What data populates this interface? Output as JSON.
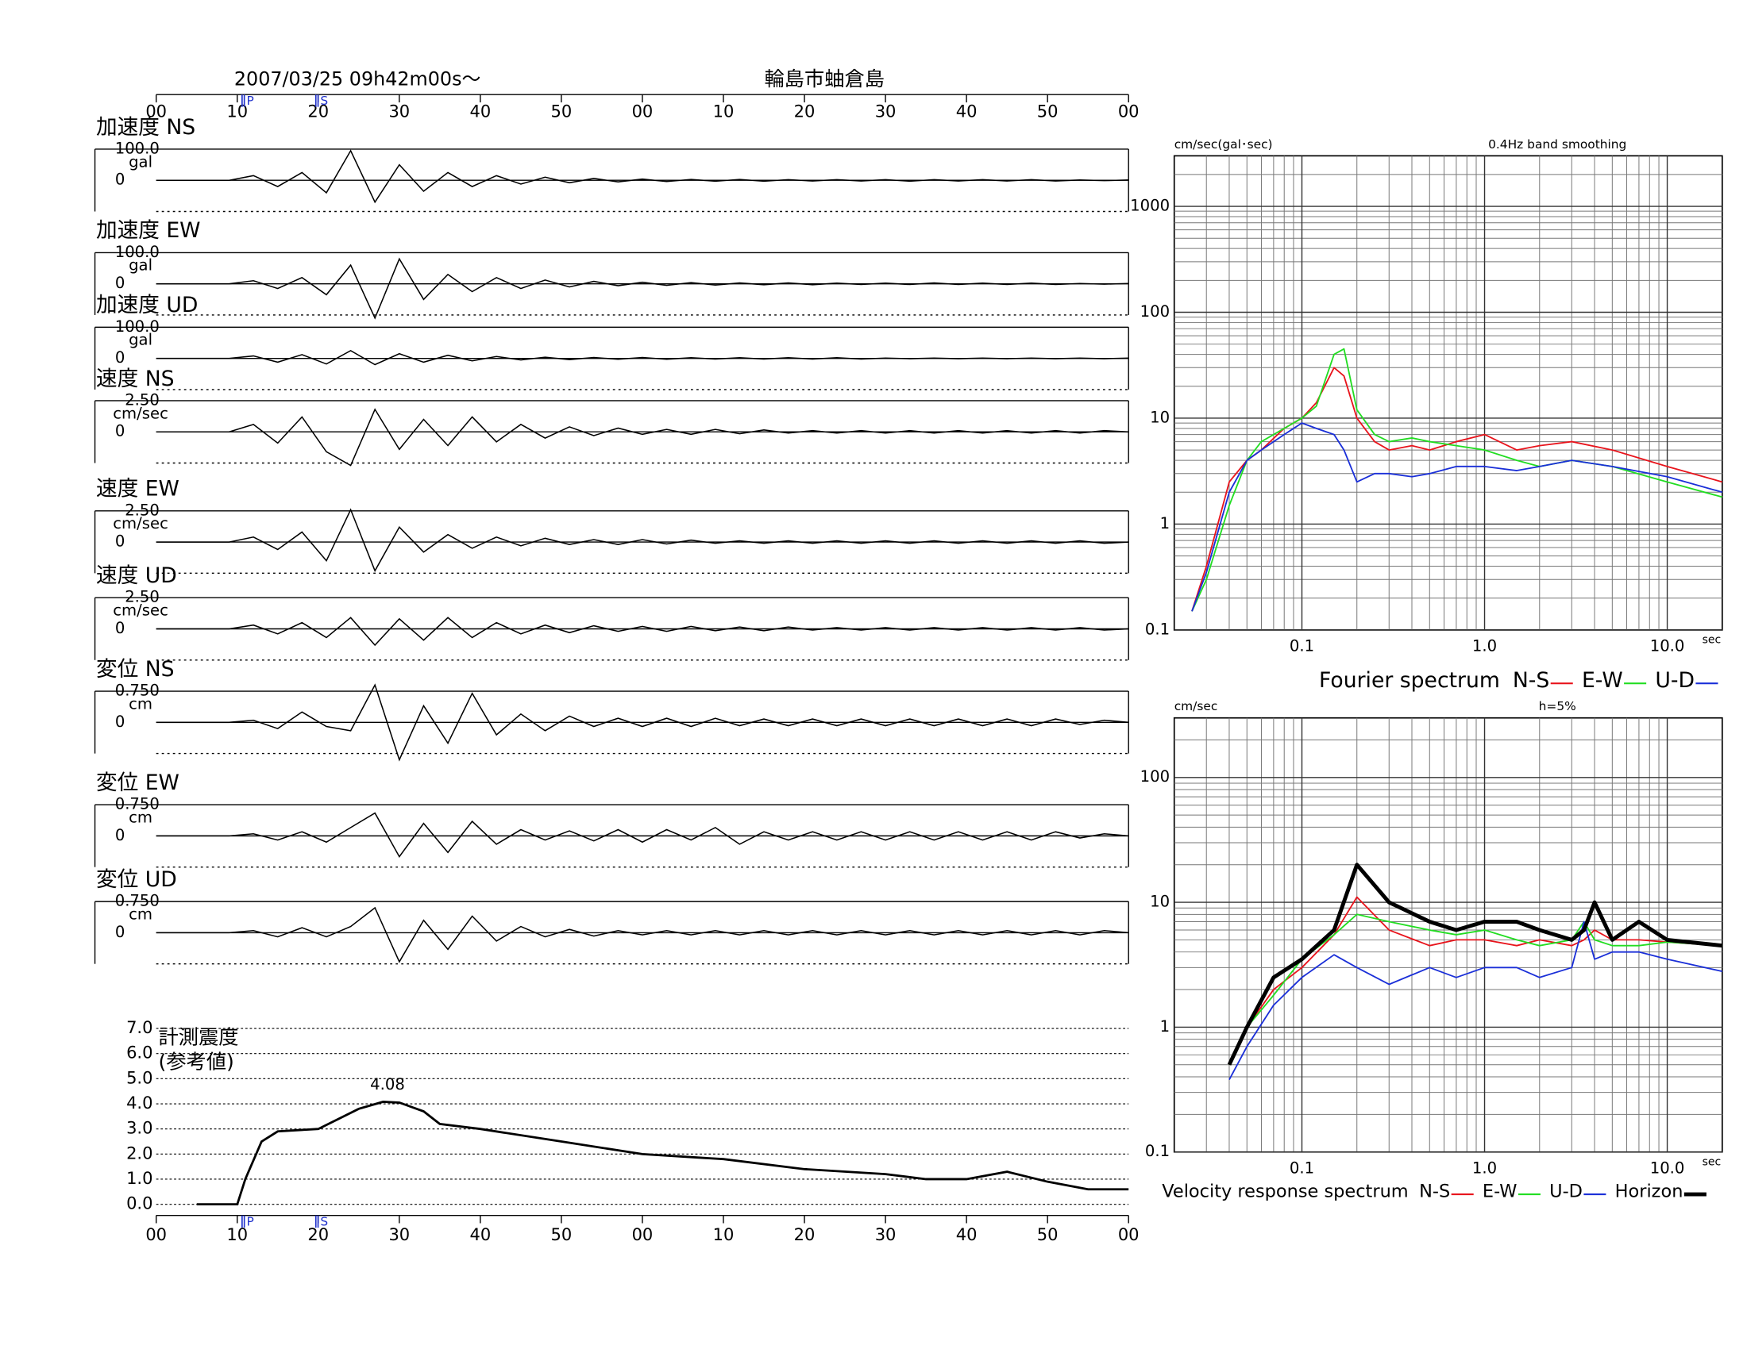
{
  "chart_data": [
    {
      "type": "waveform",
      "title": "2007/03/25  09h42m00s～",
      "station": "輪島市蚰倉島",
      "xlim": [
        0,
        120
      ],
      "xticks": [
        {
          "value": 0,
          "label": "00"
        },
        10,
        20,
        30,
        40,
        50,
        {
          "value": 60,
          "label": "00"
        },
        {
          "value": 70,
          "label": "10"
        },
        {
          "value": 80,
          "label": "20"
        },
        {
          "value": 90,
          "label": "30"
        },
        {
          "value": 100,
          "label": "40"
        },
        {
          "value": 110,
          "label": "50"
        },
        {
          "value": 120,
          "label": "00"
        }
      ],
      "phases": [
        {
          "name": "P",
          "value": 10.6
        },
        {
          "name": "S",
          "value": 19.7
        }
      ],
      "x": [
        0,
        3,
        6,
        9,
        12,
        15,
        18,
        21,
        24,
        27,
        30,
        33,
        36,
        39,
        42,
        45,
        48,
        51,
        54,
        57,
        60,
        63,
        66,
        69,
        72,
        75,
        78,
        81,
        84,
        87,
        90,
        93,
        96,
        99,
        102,
        105,
        108,
        111,
        114,
        117,
        120
      ],
      "series": [
        {
          "name": "加速度 NS",
          "unit": "gal",
          "ylim": [
            -100,
            100
          ],
          "yticks": [
            {
              "value": 100,
              "label": "100.0"
            },
            0
          ],
          "values": [
            0,
            0,
            0,
            0,
            15,
            -20,
            25,
            -40,
            95,
            -70,
            50,
            -35,
            25,
            -20,
            15,
            -12,
            10,
            -8,
            6,
            -5,
            4,
            -4,
            3,
            -3,
            3,
            -3,
            2,
            -2,
            2,
            -2,
            2,
            -3,
            2,
            -2,
            2,
            -2,
            2,
            -2,
            1,
            -1,
            1
          ]
        },
        {
          "name": "加速度 EW",
          "unit": "gal",
          "ylim": [
            -100,
            100
          ],
          "yticks": [
            {
              "value": 100,
              "label": "100.0"
            },
            0
          ],
          "values": [
            0,
            0,
            0,
            0,
            10,
            -15,
            20,
            -35,
            60,
            -110,
            80,
            -50,
            30,
            -25,
            20,
            -15,
            12,
            -10,
            8,
            -6,
            5,
            -5,
            4,
            -4,
            3,
            -3,
            3,
            -3,
            2,
            -2,
            2,
            -2,
            3,
            -2,
            2,
            -2,
            2,
            -2,
            1,
            -1,
            1
          ]
        },
        {
          "name": "加速度 UD",
          "unit": "gal",
          "ylim": [
            -100,
            100
          ],
          "yticks": [
            {
              "value": 100,
              "label": "100.0"
            },
            0
          ],
          "values": [
            0,
            0,
            0,
            0,
            8,
            -12,
            12,
            -18,
            25,
            -20,
            15,
            -12,
            10,
            -8,
            6,
            -5,
            4,
            -4,
            3,
            -3,
            3,
            -3,
            2,
            -2,
            2,
            -2,
            2,
            -2,
            2,
            -2,
            1,
            -1,
            1,
            -1,
            1,
            -1,
            1,
            -1,
            1,
            -1,
            1
          ]
        },
        {
          "name": "速度 NS",
          "unit": "cm/sec",
          "ylim": [
            -2.5,
            2.5
          ],
          "yticks": [
            {
              "value": 2.5,
              "label": "2.50"
            },
            0
          ],
          "values": [
            0,
            0,
            0,
            0,
            0.6,
            -0.9,
            1.2,
            -1.6,
            -2.7,
            1.8,
            -1.4,
            1.0,
            -1.1,
            1.2,
            -0.8,
            0.6,
            -0.5,
            0.4,
            -0.3,
            0.3,
            -0.2,
            0.2,
            -0.2,
            0.2,
            -0.15,
            0.15,
            -0.1,
            0.1,
            -0.1,
            0.1,
            -0.1,
            0.1,
            -0.1,
            0.1,
            -0.1,
            0.1,
            -0.1,
            0.1,
            -0.1,
            0.1,
            0
          ]
        },
        {
          "name": "速度 EW",
          "unit": "cm/sec",
          "ylim": [
            -2.5,
            2.5
          ],
          "yticks": [
            {
              "value": 2.5,
              "label": "2.50"
            },
            0
          ],
          "values": [
            0,
            0,
            0,
            0,
            0.4,
            -0.6,
            0.8,
            -1.5,
            2.6,
            -2.3,
            1.2,
            -0.8,
            0.6,
            -0.5,
            0.4,
            -0.3,
            0.3,
            -0.2,
            0.2,
            -0.2,
            0.2,
            -0.15,
            0.15,
            -0.1,
            0.1,
            -0.1,
            0.1,
            -0.1,
            0.1,
            -0.1,
            0.1,
            -0.1,
            0.1,
            -0.1,
            0.1,
            -0.1,
            0.1,
            -0.1,
            0.1,
            -0.1,
            0
          ]
        },
        {
          "name": "速度 UD",
          "unit": "cm/sec",
          "ylim": [
            -2.5,
            2.5
          ],
          "yticks": [
            {
              "value": 2.5,
              "label": "2.50"
            },
            0
          ],
          "values": [
            0,
            0,
            0,
            0,
            0.3,
            -0.4,
            0.5,
            -0.7,
            0.9,
            -1.3,
            0.8,
            -0.9,
            0.9,
            -0.7,
            0.5,
            -0.4,
            0.3,
            -0.3,
            0.25,
            -0.2,
            0.2,
            -0.2,
            0.2,
            -0.15,
            0.15,
            -0.15,
            0.15,
            -0.1,
            0.1,
            -0.1,
            0.1,
            -0.1,
            0.1,
            -0.1,
            0.1,
            -0.1,
            0.1,
            -0.1,
            0.1,
            -0.1,
            0
          ]
        },
        {
          "name": "変位 NS",
          "unit": "cm",
          "ylim": [
            -0.75,
            0.75
          ],
          "yticks": [
            {
              "value": 0.75,
              "label": "0.750"
            },
            0
          ],
          "values": [
            0,
            0,
            0,
            0,
            0.05,
            -0.15,
            0.25,
            -0.1,
            -0.2,
            0.9,
            -0.9,
            0.4,
            -0.5,
            0.7,
            -0.3,
            0.2,
            -0.2,
            0.15,
            -0.1,
            0.1,
            -0.1,
            0.1,
            -0.1,
            0.1,
            -0.08,
            0.08,
            -0.08,
            0.08,
            -0.08,
            0.08,
            -0.08,
            0.08,
            -0.08,
            0.08,
            -0.08,
            0.08,
            -0.08,
            0.08,
            -0.05,
            0.05,
            0
          ]
        },
        {
          "name": "変位 EW",
          "unit": "cm",
          "ylim": [
            -0.75,
            0.75
          ],
          "yticks": [
            {
              "value": 0.75,
              "label": "0.750"
            },
            0
          ],
          "values": [
            0,
            0,
            0,
            0,
            0.05,
            -0.1,
            0.1,
            -0.15,
            0.2,
            0.55,
            -0.5,
            0.3,
            -0.4,
            0.35,
            -0.2,
            0.15,
            -0.1,
            0.12,
            -0.12,
            0.15,
            -0.15,
            0.15,
            -0.1,
            0.2,
            -0.2,
            0.1,
            -0.1,
            0.1,
            -0.1,
            0.1,
            -0.1,
            0.1,
            -0.1,
            0.1,
            -0.1,
            0.1,
            -0.1,
            0.1,
            -0.05,
            0.05,
            0
          ]
        },
        {
          "name": "変位 UD",
          "unit": "cm",
          "ylim": [
            -0.75,
            0.75
          ],
          "yticks": [
            {
              "value": 0.75,
              "label": "0.750"
            },
            0
          ],
          "values": [
            0,
            0,
            0,
            0,
            0.05,
            -0.1,
            0.12,
            -0.1,
            0.15,
            0.6,
            -0.7,
            0.3,
            -0.4,
            0.4,
            -0.2,
            0.15,
            -0.1,
            0.08,
            -0.08,
            0.05,
            -0.05,
            0.05,
            -0.05,
            0.05,
            -0.05,
            0.05,
            -0.05,
            0.05,
            -0.05,
            0.05,
            -0.05,
            0.05,
            -0.05,
            0.05,
            -0.05,
            0.05,
            -0.05,
            0.05,
            -0.05,
            0.05,
            0
          ]
        }
      ]
    },
    {
      "type": "line",
      "title": "計測震度",
      "subtitle": "(参考値)",
      "color": "#000000",
      "label_max": true,
      "xlim": [
        0,
        120
      ],
      "xticks": [
        {
          "value": 0,
          "label": "00"
        },
        10,
        20,
        30,
        40,
        50,
        {
          "value": 60,
          "label": "00"
        },
        {
          "value": 70,
          "label": "10"
        },
        {
          "value": 80,
          "label": "20"
        },
        {
          "value": 90,
          "label": "30"
        },
        {
          "value": 100,
          "label": "40"
        },
        {
          "value": 110,
          "label": "50"
        },
        {
          "value": 120,
          "label": "00"
        }
      ],
      "phases": [
        {
          "name": "P",
          "value": 10.6
        },
        {
          "name": "S",
          "value": 19.7
        }
      ],
      "ylim": [
        0,
        7
      ],
      "yticks": [
        {
          "value": 0,
          "label": "0.0"
        },
        {
          "value": 1,
          "label": "1.0"
        },
        {
          "value": 2,
          "label": "2.0"
        },
        {
          "value": 3,
          "label": "3.0"
        },
        {
          "value": 4,
          "label": "4.0"
        },
        {
          "value": 5,
          "label": "5.0"
        },
        {
          "value": 6,
          "label": "6.0"
        },
        {
          "value": 7,
          "label": "7.0"
        }
      ],
      "grid": true,
      "x": [
        5,
        10,
        11,
        13,
        15,
        20,
        25,
        28,
        30,
        33,
        35,
        40,
        50,
        60,
        70,
        80,
        90,
        95,
        100,
        105,
        110,
        115,
        120
      ],
      "values": [
        0,
        0,
        1,
        2.5,
        2.9,
        3,
        3.8,
        4.08,
        4.05,
        3.7,
        3.2,
        3,
        2.5,
        2,
        1.8,
        1.4,
        1.2,
        1.0,
        1.0,
        1.3,
        0.9,
        0.6,
        0.6
      ]
    },
    {
      "type": "line",
      "log_x": true,
      "log_y": true,
      "grid": true,
      "ylabel": "cm/sec(gal･sec)",
      "note": "0.4Hz band smoothing",
      "xlabel": "sec",
      "legend_title": "Fourier spectrum",
      "xlim": [
        0.02,
        20
      ],
      "xticks": [
        0.1,
        {
          "value": 1,
          "label": "1.0"
        },
        {
          "value": 10,
          "label": "10.0"
        }
      ],
      "ylim": [
        0.1,
        3000
      ],
      "yticks": [
        0.1,
        1,
        10,
        100,
        1000
      ],
      "x": [
        0.025,
        0.03,
        0.04,
        0.05,
        0.06,
        0.08,
        0.1,
        0.12,
        0.15,
        0.17,
        0.2,
        0.25,
        0.3,
        0.4,
        0.5,
        0.7,
        1,
        1.5,
        2,
        3,
        5,
        10,
        20
      ],
      "series": [
        {
          "name": "N-S",
          "color": "#e8141c",
          "values": [
            0.15,
            0.4,
            2.5,
            4,
            5,
            8,
            10,
            14,
            30,
            25,
            10,
            6,
            5,
            5.5,
            5,
            6,
            7,
            5,
            5.5,
            6,
            5,
            3.5,
            2.5
          ]
        },
        {
          "name": "E-W",
          "color": "#22dd22",
          "values": [
            0.15,
            0.3,
            1.5,
            4,
            6,
            8,
            10,
            13,
            40,
            45,
            12,
            7,
            6,
            6.5,
            6,
            5.5,
            5,
            4,
            3.5,
            4,
            3.5,
            2.5,
            1.8
          ]
        },
        {
          "name": "U-D",
          "color": "#1a2fd8",
          "values": [
            0.15,
            0.35,
            2,
            4,
            5,
            7,
            9,
            8,
            7,
            5,
            2.5,
            3,
            3,
            2.8,
            3,
            3.5,
            3.5,
            3.2,
            3.5,
            4,
            3.5,
            2.8,
            2
          ]
        }
      ]
    },
    {
      "type": "line",
      "log_x": true,
      "log_y": true,
      "grid": true,
      "ylabel": "cm/sec",
      "note": "h=5%",
      "xlabel": "sec",
      "legend_title": "Velocity response spectrum",
      "xlim": [
        0.02,
        20
      ],
      "xticks": [
        0.1,
        {
          "value": 1,
          "label": "1.0"
        },
        {
          "value": 10,
          "label": "10.0"
        }
      ],
      "ylim": [
        0.1,
        300
      ],
      "yticks": [
        0.1,
        1,
        10,
        100
      ],
      "x": [
        0.04,
        0.05,
        0.07,
        0.1,
        0.15,
        0.2,
        0.3,
        0.5,
        0.7,
        1,
        1.5,
        2,
        3,
        3.5,
        4,
        5,
        7,
        10,
        20
      ],
      "series": [
        {
          "name": "N-S",
          "color": "#e8141c",
          "values": [
            0.5,
            1,
            2,
            3,
            5.5,
            11,
            6,
            4.5,
            5,
            5,
            4.5,
            5,
            4.5,
            5,
            6,
            5,
            5,
            4.8,
            4.5
          ]
        },
        {
          "name": "E-W",
          "color": "#22dd22",
          "values": [
            0.5,
            1,
            1.8,
            3.5,
            5.5,
            8,
            7,
            6,
            5.5,
            6,
            5,
            4.5,
            5,
            7,
            5,
            4.5,
            4.5,
            4.8,
            4.5
          ]
        },
        {
          "name": "U-D",
          "color": "#1a2fd8",
          "values": [
            0.38,
            0.7,
            1.5,
            2.5,
            3.8,
            3,
            2.2,
            3,
            2.5,
            3,
            3,
            2.5,
            3,
            7,
            3.5,
            4,
            4,
            3.5,
            2.8
          ]
        },
        {
          "name": "Horizon",
          "color": "#000000",
          "line_width": 3.5,
          "values": [
            0.5,
            1,
            2.5,
            3.5,
            6,
            20,
            10,
            7,
            6,
            7,
            7,
            6,
            5,
            6,
            10,
            5,
            7,
            5,
            4.5
          ]
        }
      ]
    }
  ]
}
